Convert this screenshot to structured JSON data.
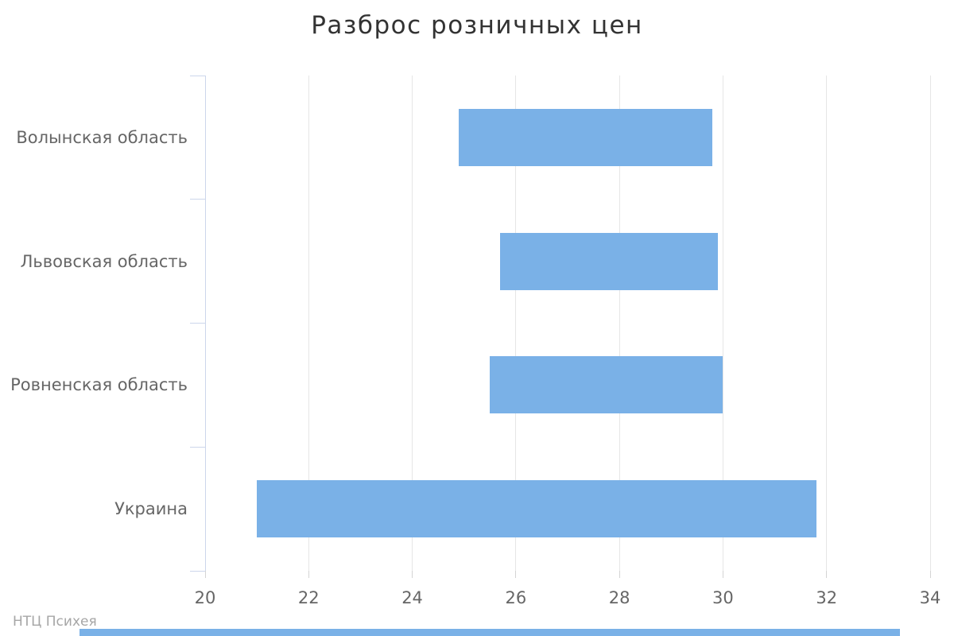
{
  "title": "Разброс розничных цен",
  "credit": "НТЦ Психея",
  "colors": {
    "bar": "#7ab1e7",
    "gridline": "#e6e6e6",
    "axis_line": "#ccd6eb",
    "value_tick": "#d4d4d4",
    "title_text": "#333333",
    "label_text": "#666666",
    "credit_text": "#a6a6a6",
    "background": "#ffffff"
  },
  "chart_data": {
    "type": "bar",
    "subtype": "range",
    "orientation": "horizontal",
    "title": "Разброс розничных цен",
    "categories": [
      "Волынская область",
      "Львовская область",
      "Ровненская область",
      "Украина"
    ],
    "series": [
      {
        "low": [
          24.9,
          25.7,
          25.5,
          21.0
        ],
        "high": [
          29.8,
          29.9,
          30.0,
          31.8
        ]
      }
    ],
    "xlabel": "",
    "ylabel": "",
    "xlim": [
      20,
      34
    ],
    "xticks": [
      20,
      22,
      24,
      26,
      28,
      30,
      32,
      34
    ],
    "grid": "vertical-only",
    "legend": "none",
    "credit": "НТЦ Психея"
  }
}
